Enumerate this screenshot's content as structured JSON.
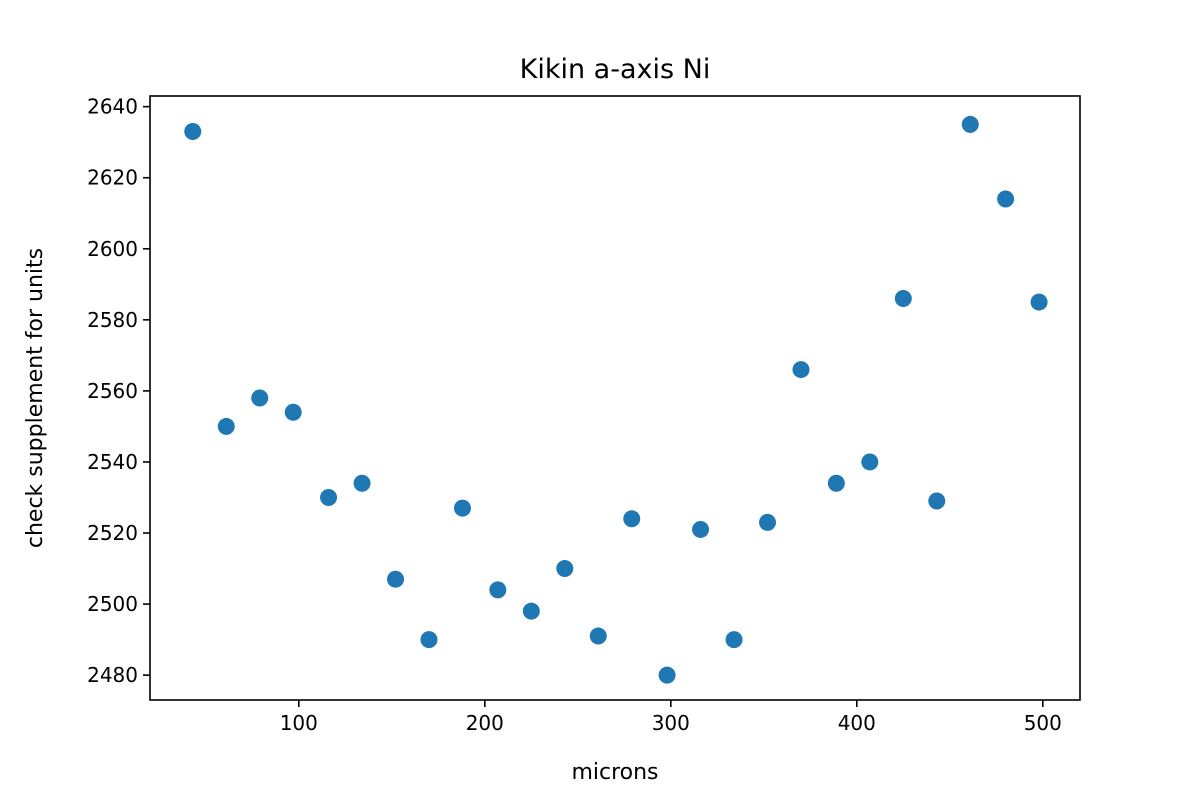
{
  "chart_data": {
    "type": "scatter",
    "title": "Kikin a-axis Ni",
    "xlabel": "microns",
    "ylabel": "check supplement for units",
    "xlim": [
      20,
      520
    ],
    "ylim": [
      2473,
      2643
    ],
    "xticks": [
      100,
      200,
      300,
      400,
      500
    ],
    "yticks": [
      2480,
      2500,
      2520,
      2540,
      2560,
      2580,
      2600,
      2620,
      2640
    ],
    "grid": false,
    "marker_color": "#1f77b4",
    "series": [
      {
        "points": [
          {
            "x": 43,
            "y": 2633
          },
          {
            "x": 61,
            "y": 2550
          },
          {
            "x": 79,
            "y": 2558
          },
          {
            "x": 97,
            "y": 2554
          },
          {
            "x": 116,
            "y": 2530
          },
          {
            "x": 134,
            "y": 2534
          },
          {
            "x": 152,
            "y": 2507
          },
          {
            "x": 170,
            "y": 2490
          },
          {
            "x": 188,
            "y": 2527
          },
          {
            "x": 207,
            "y": 2504
          },
          {
            "x": 225,
            "y": 2498
          },
          {
            "x": 243,
            "y": 2510
          },
          {
            "x": 261,
            "y": 2491
          },
          {
            "x": 279,
            "y": 2524
          },
          {
            "x": 298,
            "y": 2480
          },
          {
            "x": 316,
            "y": 2521
          },
          {
            "x": 334,
            "y": 2490
          },
          {
            "x": 352,
            "y": 2523
          },
          {
            "x": 370,
            "y": 2566
          },
          {
            "x": 389,
            "y": 2534
          },
          {
            "x": 407,
            "y": 2540
          },
          {
            "x": 425,
            "y": 2586
          },
          {
            "x": 443,
            "y": 2529
          },
          {
            "x": 461,
            "y": 2635
          },
          {
            "x": 480,
            "y": 2614
          },
          {
            "x": 498,
            "y": 2585
          }
        ]
      }
    ]
  }
}
